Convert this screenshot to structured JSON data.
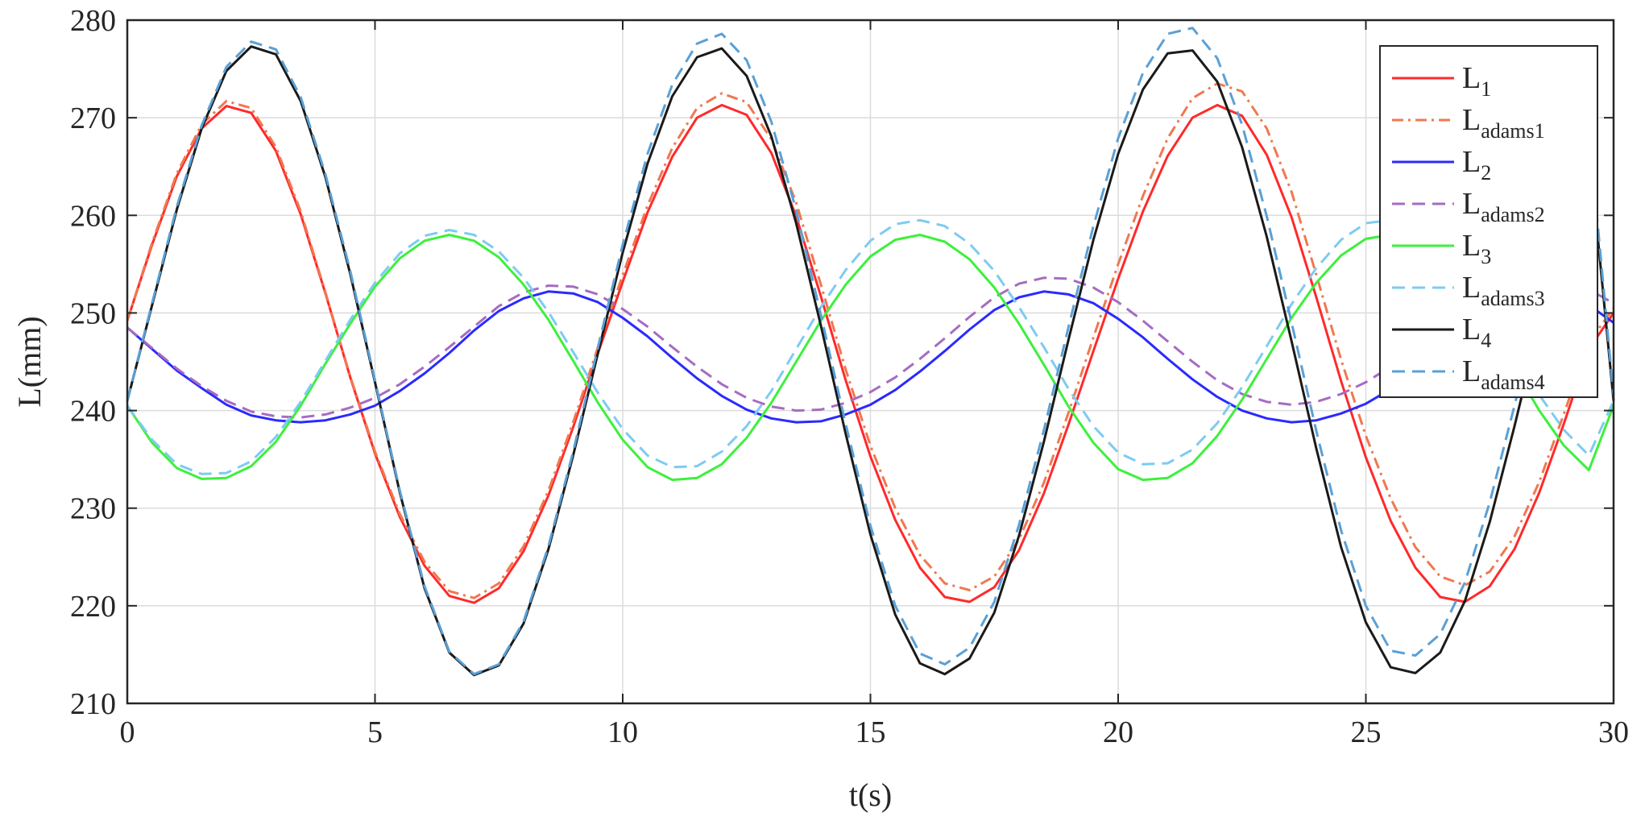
{
  "chart_data": {
    "type": "line",
    "title": "",
    "xlabel": "t(s)",
    "ylabel": "L(mm)",
    "xlim": [
      0,
      30
    ],
    "ylim": [
      210,
      280
    ],
    "xticks": [
      0,
      5,
      10,
      15,
      20,
      25,
      30
    ],
    "yticks": [
      210,
      220,
      230,
      240,
      250,
      260,
      270,
      280
    ],
    "xtick_labels": [
      "0",
      "5",
      "10",
      "15",
      "20",
      "25",
      "30"
    ],
    "ytick_labels": [
      "210",
      "220",
      "230",
      "240",
      "250",
      "260",
      "270",
      "280"
    ],
    "grid": true,
    "legend_position": "top-right",
    "x": [
      0,
      0.5,
      1,
      1.5,
      2,
      2.5,
      3,
      3.5,
      4,
      4.5,
      5,
      5.5,
      6,
      6.5,
      7,
      7.5,
      8,
      8.5,
      9,
      9.5,
      10,
      10.5,
      11,
      11.5,
      12,
      12.5,
      13,
      13.5,
      14,
      14.5,
      15,
      15.5,
      16,
      16.5,
      17,
      17.5,
      18,
      18.5,
      19,
      19.5,
      20,
      20.5,
      21,
      21.5,
      22,
      22.5,
      23,
      23.5,
      24,
      24.5,
      25,
      25.5,
      26,
      26.5,
      27,
      27.5,
      28,
      28.5,
      29,
      29.5,
      30
    ],
    "series": [
      {
        "name": "L",
        "sub": "1",
        "color": "#ff2a2a",
        "dash": "solid",
        "values": [
          249.2,
          257.0,
          264.0,
          268.9,
          271.2,
          270.5,
          266.6,
          260.1,
          252.0,
          243.4,
          235.6,
          229.1,
          224.1,
          221.0,
          220.3,
          221.8,
          225.6,
          231.3,
          238.3,
          245.9,
          253.2,
          260.3,
          266.0,
          270.0,
          271.3,
          270.3,
          266.4,
          259.9,
          251.7,
          243.1,
          235.3,
          228.8,
          223.9,
          220.9,
          220.4,
          221.9,
          225.7,
          231.5,
          238.6,
          246.1,
          253.5,
          260.4,
          266.1,
          270.0,
          271.3,
          270.2,
          266.2,
          259.8,
          251.6,
          243.0,
          235.2,
          228.7,
          223.9,
          220.9,
          220.4,
          222.0,
          225.8,
          231.6,
          238.7,
          246.3,
          250.0
        ]
      },
      {
        "name": "L",
        "sub": "adams1",
        "color": "#f07850",
        "dash": "dashdot",
        "values": [
          249.2,
          257.2,
          264.3,
          269.3,
          271.7,
          271.0,
          267.0,
          260.4,
          252.1,
          243.5,
          235.8,
          229.4,
          224.5,
          221.5,
          220.8,
          222.3,
          226.1,
          231.8,
          238.8,
          246.5,
          253.9,
          261.0,
          266.9,
          271.0,
          272.5,
          271.6,
          267.8,
          261.3,
          252.9,
          244.2,
          236.4,
          230.0,
          225.2,
          222.3,
          221.6,
          223.0,
          226.8,
          232.6,
          239.8,
          247.5,
          255.0,
          262.0,
          267.9,
          272.0,
          273.5,
          272.7,
          268.9,
          262.4,
          253.9,
          245.2,
          237.4,
          231.0,
          226.0,
          223.0,
          222.1,
          223.5,
          227.1,
          232.7,
          239.7,
          247.0,
          250.5
        ]
      },
      {
        "name": "L",
        "sub": "2",
        "color": "#2a2aff",
        "dash": "solid",
        "values": [
          248.5,
          246.3,
          244.1,
          242.3,
          240.6,
          239.5,
          239.0,
          238.8,
          239.0,
          239.6,
          240.5,
          242.0,
          243.8,
          245.9,
          248.2,
          250.2,
          251.5,
          252.2,
          252.0,
          251.1,
          249.5,
          247.6,
          245.4,
          243.3,
          241.5,
          240.1,
          239.2,
          238.8,
          238.9,
          239.6,
          240.6,
          242.1,
          244.0,
          246.1,
          248.3,
          250.3,
          251.6,
          252.2,
          251.9,
          251.0,
          249.4,
          247.5,
          245.3,
          243.2,
          241.4,
          240.0,
          239.2,
          238.8,
          239.0,
          239.7,
          240.7,
          242.2,
          244.1,
          246.2,
          248.4,
          250.3,
          251.6,
          252.1,
          251.8,
          250.8,
          249.0
        ]
      },
      {
        "name": "L",
        "sub": "adams2",
        "color": "#a66cc0",
        "dash": "dashed",
        "values": [
          248.5,
          246.4,
          244.3,
          242.5,
          241.0,
          239.9,
          239.4,
          239.3,
          239.6,
          240.3,
          241.3,
          242.7,
          244.5,
          246.5,
          248.6,
          250.7,
          252.1,
          252.8,
          252.7,
          251.9,
          250.4,
          248.6,
          246.5,
          244.5,
          242.7,
          241.3,
          240.4,
          240.0,
          240.1,
          240.8,
          241.9,
          243.4,
          245.3,
          247.4,
          249.6,
          251.6,
          253.0,
          253.6,
          253.5,
          252.6,
          251.1,
          249.2,
          247.1,
          245.0,
          243.1,
          241.7,
          240.9,
          240.6,
          240.9,
          241.7,
          242.9,
          244.5,
          246.5,
          248.7,
          250.8,
          252.6,
          253.8,
          254.1,
          253.6,
          252.4,
          251.0
        ]
      },
      {
        "name": "L",
        "sub": "3",
        "color": "#3df03d",
        "dash": "solid",
        "values": [
          240.5,
          236.7,
          234.1,
          233.0,
          233.1,
          234.3,
          236.8,
          240.5,
          244.8,
          248.9,
          252.7,
          255.6,
          257.4,
          258.0,
          257.4,
          255.7,
          252.9,
          249.3,
          245.1,
          240.8,
          237.0,
          234.2,
          232.9,
          233.1,
          234.5,
          237.2,
          240.8,
          245.0,
          249.2,
          252.9,
          255.8,
          257.5,
          258.0,
          257.3,
          255.5,
          252.6,
          248.9,
          244.7,
          240.4,
          236.7,
          234.0,
          232.9,
          233.1,
          234.6,
          237.4,
          241.1,
          245.3,
          249.5,
          253.1,
          255.9,
          257.6,
          258.0,
          257.2,
          255.3,
          252.3,
          248.6,
          244.3,
          240.0,
          236.4,
          233.9,
          240.5
        ]
      },
      {
        "name": "L",
        "sub": "adams3",
        "color": "#7ecbf0",
        "dash": "dashed",
        "values": [
          240.5,
          237.0,
          234.5,
          233.5,
          233.6,
          234.8,
          237.3,
          240.9,
          245.1,
          249.3,
          253.1,
          256.1,
          257.9,
          258.5,
          258.0,
          256.3,
          253.6,
          250.1,
          246.0,
          241.8,
          238.1,
          235.4,
          234.2,
          234.3,
          235.8,
          238.4,
          242.0,
          246.3,
          250.6,
          254.4,
          257.4,
          259.1,
          259.5,
          258.9,
          257.1,
          254.3,
          250.6,
          246.5,
          242.2,
          238.4,
          235.7,
          234.5,
          234.6,
          236.0,
          238.7,
          242.4,
          246.6,
          250.9,
          254.6,
          257.5,
          259.2,
          259.5,
          258.7,
          256.8,
          253.8,
          250.1,
          245.9,
          241.6,
          238.0,
          235.4,
          241.0
        ]
      },
      {
        "name": "L",
        "sub": "4",
        "color": "#1a1a1a",
        "dash": "solid",
        "values": [
          241.0,
          250.8,
          260.6,
          268.9,
          274.8,
          277.3,
          276.5,
          271.7,
          263.9,
          254.0,
          242.9,
          231.6,
          221.8,
          215.2,
          212.9,
          213.9,
          218.2,
          225.8,
          235.4,
          245.9,
          256.2,
          265.3,
          272.2,
          276.2,
          277.1,
          274.3,
          268.1,
          259.2,
          248.7,
          237.6,
          227.3,
          219.1,
          214.1,
          213.0,
          214.6,
          219.3,
          227.2,
          236.8,
          247.3,
          257.5,
          266.3,
          272.9,
          276.6,
          276.9,
          273.7,
          267.0,
          257.8,
          247.1,
          236.1,
          226.0,
          218.3,
          213.7,
          213.1,
          215.2,
          220.5,
          228.6,
          238.4,
          248.9,
          258.9,
          267.2,
          241.0
        ]
      },
      {
        "name": "L",
        "sub": "adams4",
        "color": "#5aa0d6",
        "dash": "dashed",
        "values": [
          241.0,
          251.0,
          260.9,
          269.2,
          275.2,
          277.8,
          277.0,
          272.1,
          264.2,
          254.3,
          243.1,
          231.8,
          222.0,
          215.3,
          213.0,
          214.0,
          218.4,
          226.1,
          235.8,
          246.5,
          257.0,
          266.3,
          273.4,
          277.6,
          278.6,
          275.9,
          269.6,
          260.5,
          249.8,
          238.6,
          228.2,
          220.0,
          215.1,
          214.0,
          215.7,
          220.4,
          228.3,
          238.0,
          248.6,
          258.9,
          267.9,
          274.6,
          278.6,
          279.2,
          276.1,
          269.3,
          259.9,
          249.0,
          237.9,
          227.7,
          220.0,
          215.4,
          214.9,
          217.1,
          222.4,
          230.6,
          240.5,
          251.0,
          260.9,
          268.9,
          241.5
        ]
      }
    ]
  }
}
